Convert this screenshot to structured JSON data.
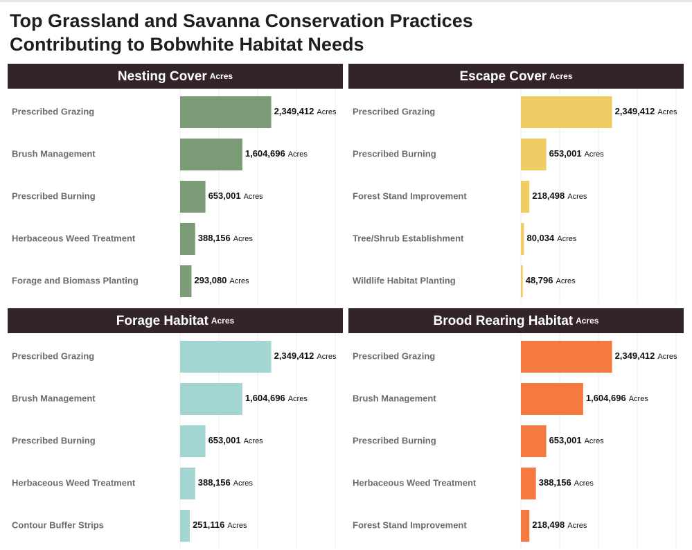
{
  "title": [
    "Top Grassland and Savanna Conservation Practices",
    "Contributing to Bobwhite Habitat Needs"
  ],
  "chart_data": [
    {
      "type": "bar",
      "orientation": "horizontal",
      "title": "Nesting Cover",
      "unit": "Acres",
      "color": "#7b9b76",
      "categories": [
        "Prescribed Grazing",
        "Brush Management",
        "Prescribed Burning",
        "Herbaceous Weed Treatment",
        "Forage and Biomass Planting"
      ],
      "values": [
        2349412,
        1604696,
        653001,
        388156,
        293080
      ],
      "value_labels": [
        "2,349,412",
        "1,604,696",
        "653,001",
        "388,156",
        "293,080"
      ],
      "xlim": [
        0,
        4000000
      ],
      "xticks": [
        0,
        1000000,
        2000000,
        3000000,
        4000000
      ],
      "grid": true
    },
    {
      "type": "bar",
      "orientation": "horizontal",
      "title": "Escape Cover",
      "unit": "Acres",
      "color": "#efcd64",
      "categories": [
        "Prescribed Grazing",
        "Prescribed Burning",
        "Forest Stand Improvement",
        "Tree/Shrub Establishment",
        "Wildlife Habitat Planting"
      ],
      "values": [
        2349412,
        653001,
        218498,
        80034,
        48796
      ],
      "value_labels": [
        "2,349,412",
        "653,001",
        "218,498",
        "80,034",
        "48,796"
      ],
      "xlim": [
        0,
        4000000
      ],
      "xticks": [
        0,
        1000000,
        2000000,
        3000000,
        4000000
      ],
      "grid": true
    },
    {
      "type": "bar",
      "orientation": "horizontal",
      "title": "Forage Habitat",
      "unit": "Acres",
      "color": "#a3d5d3",
      "categories": [
        "Prescribed Grazing",
        "Brush Management",
        "Prescribed Burning",
        "Herbaceous Weed Treatment",
        "Contour Buffer Strips"
      ],
      "values": [
        2349412,
        1604696,
        653001,
        388156,
        251116
      ],
      "value_labels": [
        "2,349,412",
        "1,604,696",
        "653,001",
        "388,156",
        "251,116"
      ],
      "xlim": [
        0,
        4000000
      ],
      "xticks": [
        0,
        1000000,
        2000000,
        3000000,
        4000000
      ],
      "grid": true
    },
    {
      "type": "bar",
      "orientation": "horizontal",
      "title": "Brood Rearing Habitat",
      "unit": "Acres",
      "color": "#f47a42",
      "categories": [
        "Prescribed Grazing",
        "Brush Management",
        "Prescribed Burning",
        "Herbaceous Weed Treatment",
        "Forest Stand Improvement"
      ],
      "values": [
        2349412,
        1604696,
        653001,
        388156,
        218498
      ],
      "value_labels": [
        "2,349,412",
        "1,604,696",
        "653,001",
        "388,156",
        "218,498"
      ],
      "xlim": [
        0,
        4000000
      ],
      "xticks": [
        0,
        1000000,
        2000000,
        3000000,
        4000000
      ],
      "grid": true
    }
  ]
}
